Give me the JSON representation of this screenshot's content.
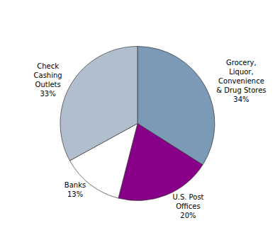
{
  "chart_data": {
    "type": "pie",
    "categories": [
      "Grocery,\nLiquor,\nConvenience\n& Drug Stores",
      "U.S. Post\nOffices",
      "Banks",
      "Check\nCashing\nOutlets"
    ],
    "values": [
      34,
      20,
      13,
      33
    ],
    "value_labels": [
      "34%",
      "20%",
      "13%",
      "33%"
    ],
    "colors": [
      "#7a9ab5",
      "#880088",
      "#ffffff",
      "#b0bece"
    ],
    "data_labels": true
  }
}
